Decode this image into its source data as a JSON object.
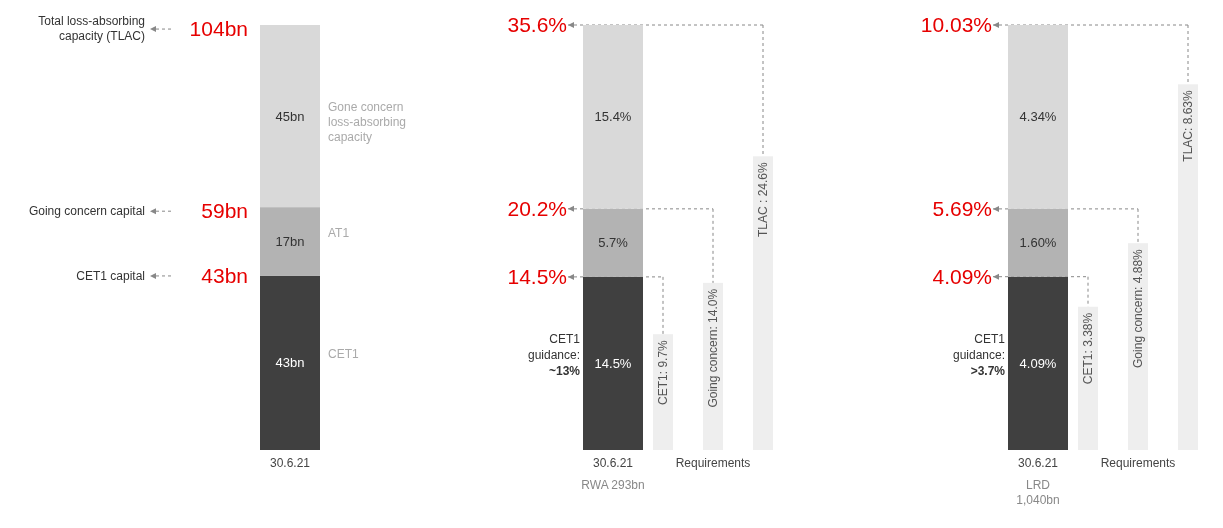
{
  "chart_data": [
    {
      "type": "bar",
      "stacked": true,
      "categories": [
        "30.6.21"
      ],
      "tick_labels": "x",
      "ylim": [
        0,
        105
      ],
      "series": [
        {
          "name": "CET1",
          "color": "#404040",
          "values": [
            43
          ],
          "value_labels": [
            "43bn"
          ]
        },
        {
          "name": "AT1",
          "color": "#b3b3b3",
          "values": [
            17
          ],
          "value_labels": [
            "17bn"
          ]
        },
        {
          "name": "Gone concern loss-absorbing capacity",
          "color": "#d9d9d9",
          "values": [
            45
          ],
          "value_labels": [
            "45bn"
          ]
        }
      ],
      "ref_lines": [
        {
          "axis": "y",
          "value": 104,
          "label": "104bn",
          "color": "#888888",
          "line_style": "dashed"
        },
        {
          "axis": "y",
          "value": 59,
          "label": "59bn",
          "color": "#888888",
          "line_style": "dashed"
        },
        {
          "axis": "y",
          "value": 43,
          "label": "43bn",
          "color": "#888888",
          "line_style": "dashed"
        }
      ],
      "annotations": [
        "Total loss-absorbing capacity (TLAC)",
        "Going concern capital",
        "CET1 capital"
      ]
    },
    {
      "type": "bar",
      "stacked": true,
      "categories": [
        "30.6.21",
        null,
        "Requirements",
        null
      ],
      "tick_labels": "x",
      "ylim": [
        0,
        35.6
      ],
      "series": [
        {
          "color": "#404040",
          "values": [
            14.5,
            null,
            null,
            null
          ],
          "value_labels": [
            "14.5%",
            null,
            null,
            null
          ]
        },
        {
          "color": "#b3b3b3",
          "values": [
            5.7,
            null,
            null,
            null
          ],
          "value_labels": [
            "5.7%",
            null,
            null,
            null
          ]
        },
        {
          "color": "#d9d9d9",
          "values": [
            15.4,
            null,
            null,
            null
          ],
          "value_labels": [
            "15.4%",
            null,
            null,
            null
          ]
        },
        {
          "color": "#eeeeee",
          "values": [
            null,
            9.7,
            14.0,
            24.6
          ],
          "value_labels": [
            null,
            "CET1: 9.7%",
            "Going concern: 14.0%",
            "TLAC : 24.6%"
          ]
        }
      ],
      "ref_lines": [
        {
          "axis": "y",
          "value": 14.5,
          "label": "14.5%",
          "color": "#888888",
          "line_style": "dashed"
        },
        {
          "axis": "y",
          "value": 20.2,
          "label": "20.2%",
          "color": "#888888",
          "line_style": "dashed"
        },
        {
          "axis": "y",
          "value": 35.6,
          "label": "35.6%",
          "color": "#888888",
          "line_style": "dashed"
        }
      ],
      "annotations": [
        "CET1 guidance: ~13%",
        "RWA 293bn"
      ]
    },
    {
      "type": "bar",
      "stacked": true,
      "categories": [
        "30.6.21",
        null,
        "Requirements",
        null
      ],
      "tick_labels": "x",
      "ylim": [
        0,
        10.03
      ],
      "series": [
        {
          "color": "#404040",
          "values": [
            4.09,
            null,
            null,
            null
          ],
          "value_labels": [
            "4.09%",
            null,
            null,
            null
          ]
        },
        {
          "color": "#b3b3b3",
          "values": [
            1.6,
            null,
            null,
            null
          ],
          "value_labels": [
            "1.60%",
            null,
            null,
            null
          ]
        },
        {
          "color": "#d9d9d9",
          "values": [
            4.34,
            null,
            null,
            null
          ],
          "value_labels": [
            "4.34%",
            null,
            null,
            null
          ]
        },
        {
          "color": "#eeeeee",
          "values": [
            null,
            3.38,
            4.88,
            8.63
          ],
          "value_labels": [
            null,
            "CET1: 3.38%",
            "Going concern: 4.88%",
            "TLAC: 8.63%"
          ]
        }
      ],
      "ref_lines": [
        {
          "axis": "y",
          "value": 4.09,
          "label": "4.09%",
          "color": "#888888",
          "line_style": "dashed"
        },
        {
          "axis": "y",
          "value": 5.69,
          "label": "5.69%",
          "color": "#888888",
          "line_style": "dashed"
        },
        {
          "axis": "y",
          "value": 10.03,
          "label": "10.03%",
          "color": "#888888",
          "line_style": "dashed"
        }
      ],
      "annotations": [
        "CET1 guidance: >3.7%",
        "LRD 1,040bn"
      ]
    }
  ]
}
